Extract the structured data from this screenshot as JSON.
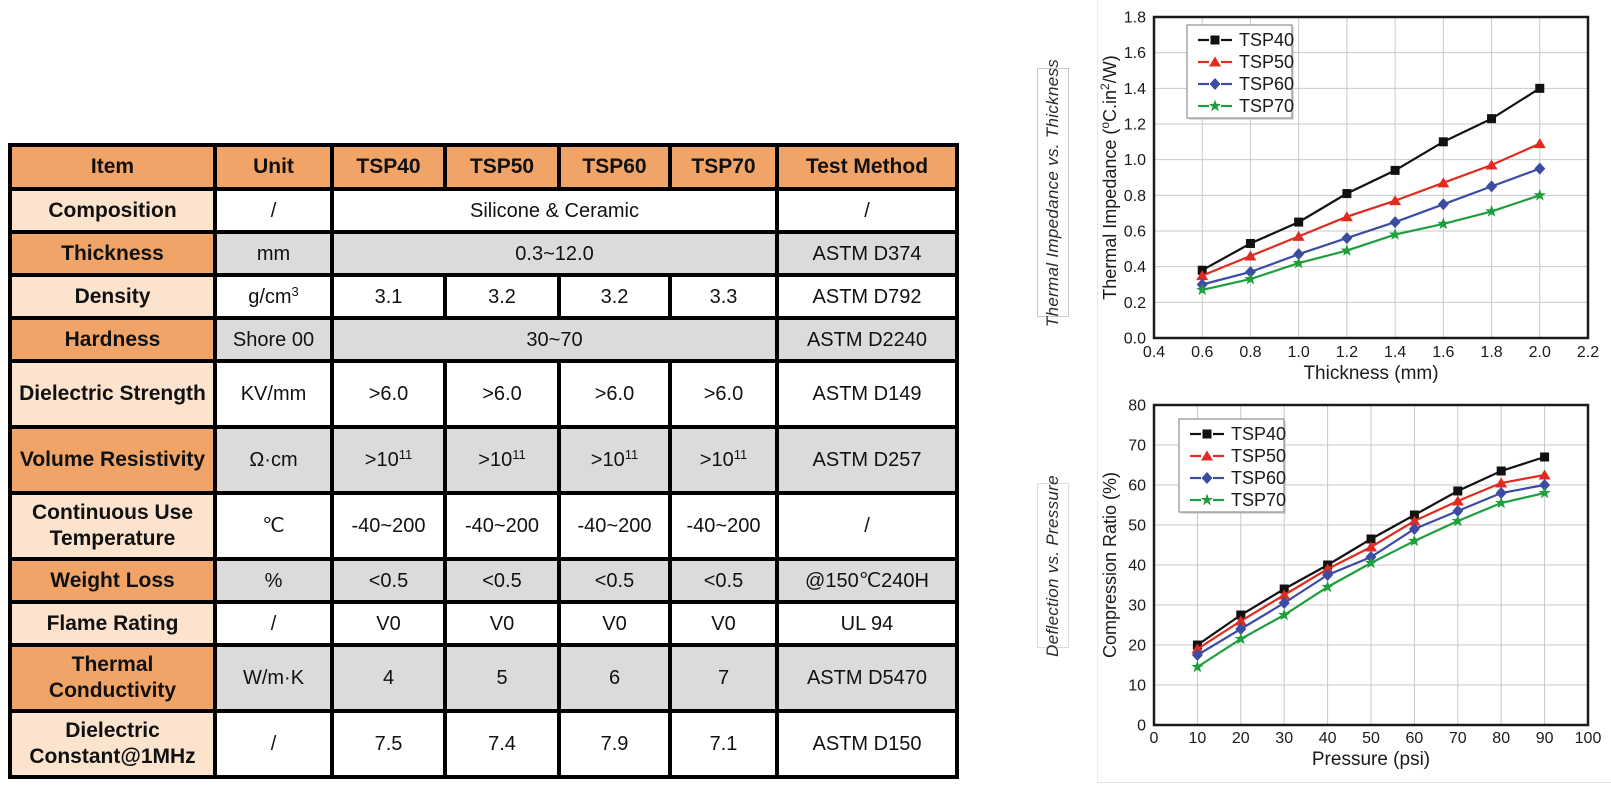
{
  "colors": {
    "header_orange": "#F1A467",
    "item_peach": "#FBE3CE",
    "data_gray": "#DBDBDB",
    "table_border": "#000000",
    "grid": "#C9C9C9",
    "frame": "#1A1A1A",
    "series_black": "#111111",
    "series_red": "#E02B20",
    "series_blue": "#3B4CA4",
    "series_green": "#1F9E3E"
  },
  "table": {
    "headers": [
      "Item",
      "Unit",
      "TSP40",
      "TSP50",
      "TSP60",
      "TSP70",
      "Test Method"
    ],
    "rows": [
      {
        "item": "Composition",
        "tone": "light",
        "unit": "/",
        "merged": "Silicone & Ceramic",
        "method": "/"
      },
      {
        "item": "Thickness",
        "tone": "dark",
        "unit": "mm",
        "merged": "0.3~12.0",
        "method": "ASTM D374"
      },
      {
        "item": "Density",
        "tone": "light",
        "unit": "g/cm^{3}",
        "values": [
          "3.1",
          "3.2",
          "3.2",
          "3.3"
        ],
        "method": "ASTM D792"
      },
      {
        "item": "Hardness",
        "tone": "dark",
        "unit": "Shore 00",
        "merged": "30~70",
        "method": "ASTM D2240"
      },
      {
        "item": "Dielectric Strength",
        "tone": "light",
        "unit": "KV/mm",
        "values": [
          ">6.0",
          ">6.0",
          ">6.0",
          ">6.0"
        ],
        "method": "ASTM D149",
        "tall": true
      },
      {
        "item": "Volume Resistivity",
        "tone": "dark",
        "unit": "Ω·cm",
        "values": [
          ">10^{11}",
          ">10^{11}",
          ">10^{11}",
          ">10^{11}"
        ],
        "method": "ASTM D257",
        "tall": true
      },
      {
        "item": "Continuous Use Temperature",
        "tone": "light",
        "unit": "℃",
        "values": [
          "-40~200",
          "-40~200",
          "-40~200",
          "-40~200"
        ],
        "method": "/",
        "tall": true
      },
      {
        "item": "Weight Loss",
        "tone": "dark",
        "unit": "%",
        "values": [
          "<0.5",
          "<0.5",
          "<0.5",
          "<0.5"
        ],
        "method": "@150℃240H"
      },
      {
        "item": "Flame Rating",
        "tone": "light",
        "unit": "/",
        "values": [
          "V0",
          "V0",
          "V0",
          "V0"
        ],
        "method": "UL 94"
      },
      {
        "item": "Thermal Conductivity",
        "tone": "dark",
        "unit": "W/m·K",
        "values": [
          "4",
          "5",
          "6",
          "7"
        ],
        "method": "ASTM D5470",
        "tall": true
      },
      {
        "item": "Dielectric Constant@1MHz",
        "tone": "light",
        "unit": "/",
        "values": [
          "7.5",
          "7.4",
          "7.9",
          "7.1"
        ],
        "method": "ASTM D150",
        "tall": true
      }
    ]
  },
  "chart_data": [
    {
      "type": "line",
      "side_label": "Thermal Impedance vs. Thickness",
      "xlabel": "Thickness (mm)",
      "ylabel": "Thermal Impedance (^{o}C.in^{2}/W)",
      "xlim": [
        0.4,
        2.2
      ],
      "ylim": [
        0.0,
        1.8
      ],
      "xtick_labels": [
        "0.4",
        "0.6",
        "0.8",
        "1.0",
        "1.2",
        "1.4",
        "1.6",
        "1.8",
        "2.0",
        "2.2"
      ],
      "ytick_labels": [
        "0.0",
        "0.2",
        "0.4",
        "0.6",
        "0.8",
        "1.0",
        "1.2",
        "1.4",
        "1.6",
        "1.8"
      ],
      "grid": true,
      "legend_position": "top-left",
      "x": [
        0.6,
        0.8,
        1.0,
        1.2,
        1.4,
        1.6,
        1.8,
        2.0
      ],
      "series": [
        {
          "name": "TSP40",
          "color": "#111111",
          "marker": "square",
          "values": [
            0.38,
            0.53,
            0.65,
            0.81,
            0.94,
            1.1,
            1.23,
            1.4
          ]
        },
        {
          "name": "TSP50",
          "color": "#E02B20",
          "marker": "triangle",
          "values": [
            0.35,
            0.46,
            0.57,
            0.68,
            0.77,
            0.87,
            0.97,
            1.09
          ]
        },
        {
          "name": "TSP60",
          "color": "#3B4CA4",
          "marker": "diamond",
          "values": [
            0.3,
            0.37,
            0.47,
            0.56,
            0.65,
            0.75,
            0.85,
            0.95
          ]
        },
        {
          "name": "TSP70",
          "color": "#1F9E3E",
          "marker": "star",
          "values": [
            0.27,
            0.33,
            0.42,
            0.49,
            0.58,
            0.64,
            0.71,
            0.8
          ]
        }
      ]
    },
    {
      "type": "line",
      "side_label": "Deflection vs. Pressure",
      "xlabel": "Pressure (psi)",
      "ylabel": "Compression Ratio (%)",
      "xlim": [
        0,
        100
      ],
      "ylim": [
        0,
        80
      ],
      "xtick_labels": [
        "0",
        "10",
        "20",
        "30",
        "40",
        "50",
        "60",
        "70",
        "80",
        "90",
        "100"
      ],
      "ytick_labels": [
        "0",
        "10",
        "20",
        "30",
        "40",
        "50",
        "60",
        "70",
        "80"
      ],
      "grid": true,
      "legend_position": "top-left",
      "x": [
        10,
        20,
        30,
        40,
        50,
        60,
        70,
        80,
        90
      ],
      "series": [
        {
          "name": "TSP40",
          "color": "#111111",
          "marker": "square",
          "values": [
            20,
            27.5,
            34,
            40,
            46.5,
            52.5,
            58.5,
            63.5,
            67
          ]
        },
        {
          "name": "TSP50",
          "color": "#E02B20",
          "marker": "triangle",
          "values": [
            19,
            26,
            32.5,
            39,
            44.5,
            51,
            56,
            60.5,
            62.5
          ]
        },
        {
          "name": "TSP60",
          "color": "#3B4CA4",
          "marker": "diamond",
          "values": [
            17.5,
            24,
            30.5,
            37.5,
            42,
            49,
            53.5,
            58,
            60
          ]
        },
        {
          "name": "TSP70",
          "color": "#1F9E3E",
          "marker": "star",
          "values": [
            14.5,
            21.5,
            27.5,
            34.5,
            40.5,
            46,
            51,
            55.5,
            58
          ]
        }
      ]
    }
  ]
}
